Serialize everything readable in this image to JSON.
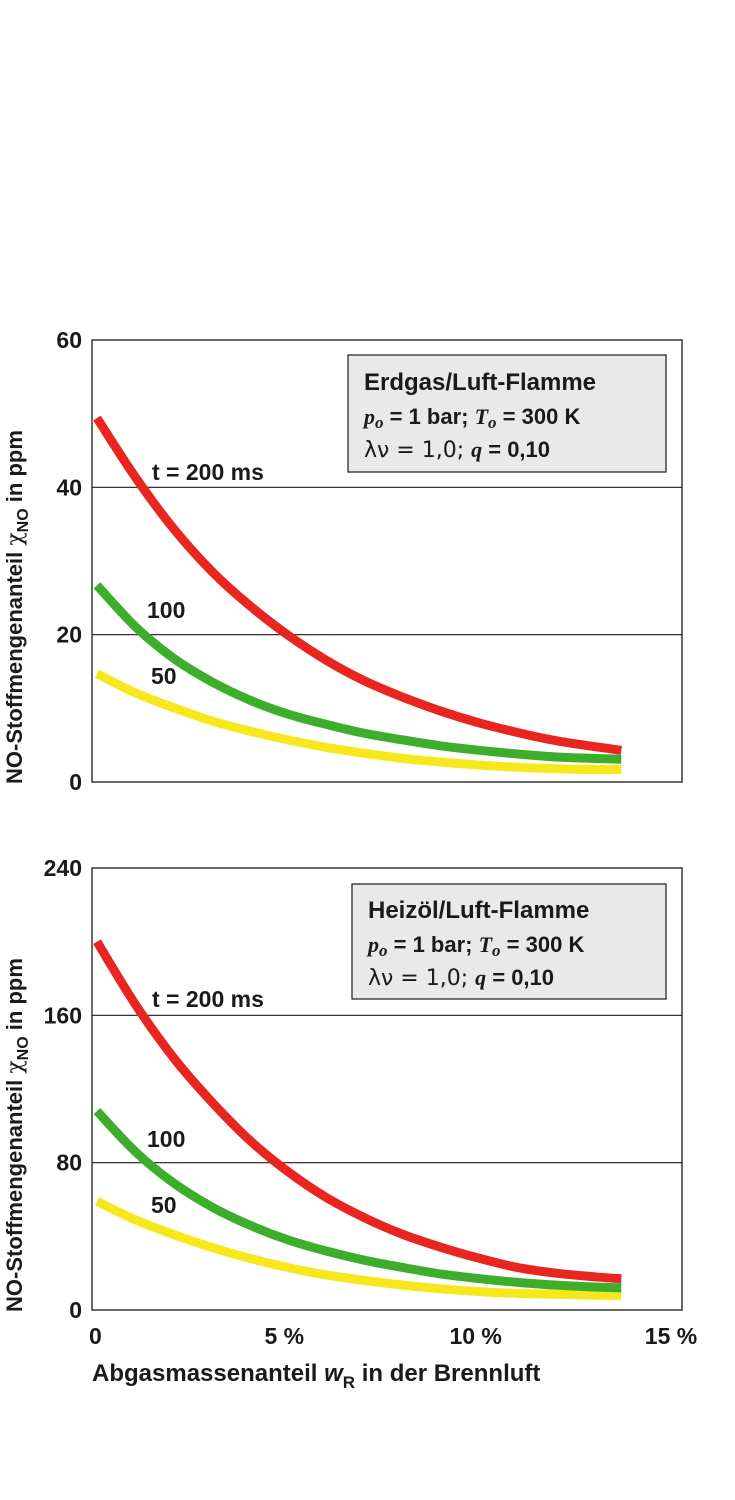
{
  "chart_data": [
    {
      "type": "line",
      "ylabel_main": "NO-Stoffmengenanteil ",
      "ylabel_symbol": "χ",
      "ylabel_sub": "NO",
      "ylabel_unit": " in ppm",
      "xlim": [
        0,
        15
      ],
      "ylim": [
        0,
        60
      ],
      "yticks": [
        0,
        20,
        40,
        60
      ],
      "ytick_labels": [
        "0",
        "20",
        "40",
        "60"
      ],
      "grid_y": [
        20,
        40
      ],
      "infobox": {
        "title": "Erdgas/Luft-Flamme",
        "line2": {
          "p_sym": "p",
          "p_sub": "o",
          "p_val": " = 1 bar; ",
          "t_sym": "T",
          "t_sub": "o",
          "t_val": " = 300 K"
        },
        "line3": {
          "lam": "λν = 1,0; ",
          "q_sym": "q",
          "q_val": " = 0,10"
        }
      },
      "series": [
        {
          "name": "t = 200 ms",
          "color": "#e8251f",
          "x": [
            0,
            1,
            2,
            3,
            4,
            5,
            6,
            7,
            8,
            9,
            10,
            11,
            12,
            13,
            13.7
          ],
          "values": [
            49.4,
            41.4,
            34.4,
            28.6,
            23.9,
            19.9,
            16.5,
            13.7,
            11.5,
            9.6,
            8.0,
            6.7,
            5.6,
            4.8,
            4.3
          ]
        },
        {
          "name": "100",
          "color": "#3dae2b",
          "x": [
            0,
            1,
            2,
            3,
            4,
            5,
            6,
            7,
            8,
            9,
            10,
            11,
            12,
            13,
            13.7
          ],
          "values": [
            26.7,
            21.1,
            16.8,
            13.6,
            11.1,
            9.2,
            7.8,
            6.6,
            5.7,
            4.9,
            4.3,
            3.8,
            3.4,
            3.2,
            3.1
          ]
        },
        {
          "name": "50",
          "color": "#f7e81e",
          "x": [
            0,
            1,
            2,
            3,
            4,
            5,
            6,
            7,
            8,
            9,
            10,
            11,
            12,
            13,
            13.7
          ],
          "values": [
            14.7,
            12.1,
            10.1,
            8.3,
            6.9,
            5.7,
            4.7,
            3.9,
            3.2,
            2.7,
            2.3,
            2.0,
            1.8,
            1.7,
            1.7
          ]
        }
      ]
    },
    {
      "type": "line",
      "ylabel_main": "NO-Stoffmengenanteil ",
      "ylabel_symbol": "χ",
      "ylabel_sub": "NO",
      "ylabel_unit": " in ppm",
      "xlabel_main": "Abgasmassenanteil ",
      "xlabel_symbol": "w",
      "xlabel_sub": "R",
      "xlabel_rest": " in der Brennluft",
      "xlim": [
        0,
        15
      ],
      "xticks": [
        0,
        5,
        10,
        15
      ],
      "xtick_labels": [
        "0",
        "5 %",
        "10 %",
        "15 %"
      ],
      "ylim": [
        0,
        240
      ],
      "yticks": [
        0,
        80,
        160,
        240
      ],
      "ytick_labels": [
        "0",
        "80",
        "160",
        "240"
      ],
      "grid_y": [
        80,
        160
      ],
      "infobox": {
        "title": "Heizöl/Luft-Flamme",
        "line2": {
          "p_sym": "p",
          "p_sub": "o",
          "p_val": " = 1 bar; ",
          "t_sym": "T",
          "t_sub": "o",
          "t_val": " = 300 K"
        },
        "line3": {
          "lam": "λν = 1,0; ",
          "q_sym": "q",
          "q_val": " = 0,10"
        }
      },
      "series": [
        {
          "name": "t = 200 ms",
          "color": "#e8251f",
          "x": [
            0,
            1,
            2,
            3,
            4,
            5,
            6,
            7,
            8,
            9,
            10,
            11,
            12,
            13,
            13.7
          ],
          "values": [
            200,
            166,
            137,
            113,
            92,
            75,
            61,
            50,
            41,
            34,
            28,
            23,
            20,
            18,
            17
          ]
        },
        {
          "name": "100",
          "color": "#3dae2b",
          "x": [
            0,
            1,
            2,
            3,
            4,
            5,
            6,
            7,
            8,
            9,
            10,
            11,
            12,
            13,
            13.7
          ],
          "values": [
            108,
            86,
            69,
            56,
            46,
            38,
            32,
            27,
            23,
            19.5,
            17,
            15,
            13.5,
            12.5,
            12
          ]
        },
        {
          "name": "50",
          "color": "#f7e81e",
          "x": [
            0,
            1,
            2,
            3,
            4,
            5,
            6,
            7,
            8,
            9,
            10,
            11,
            12,
            13,
            13.7
          ],
          "values": [
            59,
            49,
            41,
            34,
            28,
            23,
            19,
            16,
            13.5,
            11.5,
            10,
            9,
            8.5,
            8,
            8
          ]
        }
      ]
    }
  ]
}
